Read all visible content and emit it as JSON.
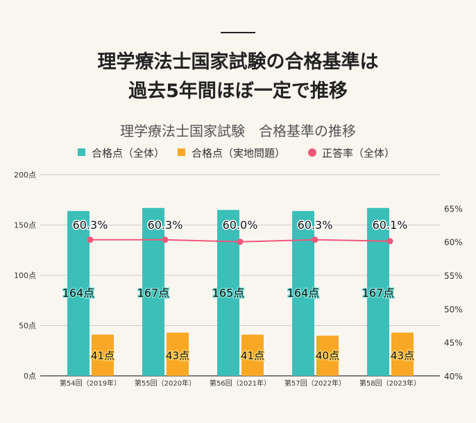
{
  "heading": {
    "line1": "理学療法士国家試験の合格基準は",
    "line2": "過去5年間ほぼ一定で推移"
  },
  "chart_data": {
    "type": "bar+line",
    "title": "理学療法士国家試験　合格基準の推移",
    "categories": [
      "第54回（2019年）",
      "第55回（2020年）",
      "第56回（2021年）",
      "第57回（2022年）",
      "第58回（2023年）"
    ],
    "series": [
      {
        "name": "合格点（全体）",
        "type": "bar",
        "axis": "left",
        "color": "#3bbfb8",
        "values": [
          164,
          167,
          165,
          164,
          167
        ],
        "labels": [
          "164点",
          "167点",
          "165点",
          "164点",
          "167点"
        ]
      },
      {
        "name": "合格点（実地問題）",
        "type": "bar",
        "axis": "left",
        "color": "#f9a825",
        "values": [
          41,
          43,
          41,
          40,
          43
        ],
        "labels": [
          "41点",
          "43点",
          "41点",
          "40点",
          "43点"
        ]
      },
      {
        "name": "正答率（全体）",
        "type": "line",
        "axis": "right",
        "color": "#f0577a",
        "values": [
          60.3,
          60.3,
          60.0,
          60.3,
          60.1
        ],
        "labels": [
          "60.3%",
          "60.3%",
          "60.0%",
          "60.3%",
          "60.1%"
        ]
      }
    ],
    "left_axis": {
      "range": [
        0,
        200
      ],
      "ticks": [
        "0点",
        "50点",
        "100点",
        "150点",
        "200点"
      ]
    },
    "right_axis": {
      "range": [
        40,
        70
      ],
      "ticks": [
        "40%",
        "45%",
        "50%",
        "55%",
        "60%",
        "65%"
      ]
    },
    "legend_position": "top",
    "grid": true
  }
}
